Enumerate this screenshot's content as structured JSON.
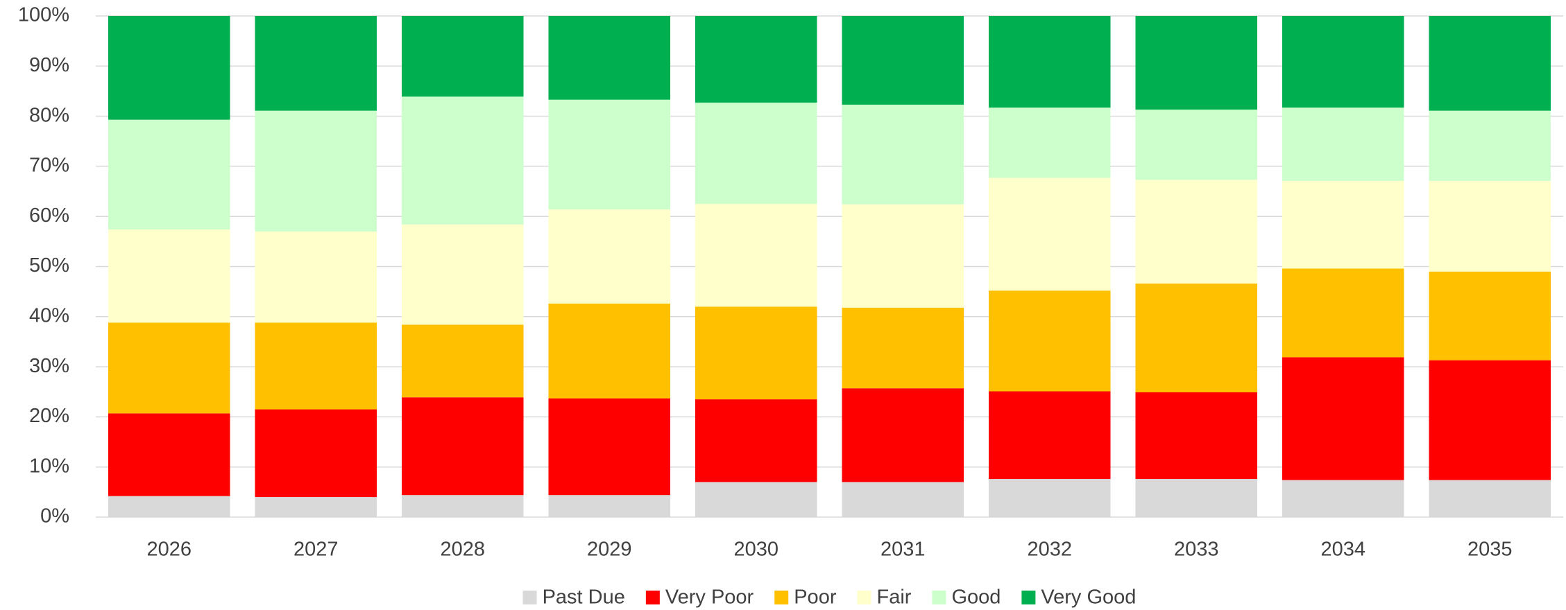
{
  "chart_data": {
    "type": "stacked_bar_100",
    "categories": [
      "2026",
      "2027",
      "2028",
      "2029",
      "2030",
      "2031",
      "2032",
      "2033",
      "2034",
      "2035"
    ],
    "series": [
      {
        "name": "Past Due",
        "color": "#d9d9d9",
        "values": [
          4.2,
          4.0,
          4.4,
          4.4,
          7.0,
          7.0,
          7.6,
          7.6,
          7.4,
          7.4
        ]
      },
      {
        "name": "Very Poor",
        "color": "#ff0000",
        "values": [
          16.5,
          17.5,
          19.5,
          19.3,
          16.5,
          18.7,
          17.5,
          17.3,
          24.5,
          23.9
        ]
      },
      {
        "name": "Poor",
        "color": "#ffc000",
        "values": [
          18.1,
          17.3,
          14.5,
          18.9,
          18.5,
          16.1,
          20.1,
          21.7,
          17.7,
          17.7
        ]
      },
      {
        "name": "Fair",
        "color": "#ffffcc",
        "values": [
          18.6,
          18.2,
          20.0,
          18.8,
          20.5,
          20.6,
          22.5,
          20.7,
          17.5,
          18.1
        ]
      },
      {
        "name": "Good",
        "color": "#ccffcc",
        "values": [
          21.9,
          24.1,
          25.5,
          21.9,
          20.2,
          19.9,
          14.0,
          14.0,
          14.6,
          14.0
        ]
      },
      {
        "name": "Very Good",
        "color": "#00b050",
        "values": [
          20.7,
          18.9,
          16.1,
          16.7,
          17.3,
          17.7,
          18.3,
          18.7,
          18.3,
          18.9
        ]
      }
    ],
    "ylim": [
      0,
      100
    ],
    "yticks": [
      {
        "value": 0,
        "label": "0%"
      },
      {
        "value": 10,
        "label": "10%"
      },
      {
        "value": 20,
        "label": "20%"
      },
      {
        "value": 30,
        "label": "30%"
      },
      {
        "value": 40,
        "label": "40%"
      },
      {
        "value": 50,
        "label": "50%"
      },
      {
        "value": 60,
        "label": "60%"
      },
      {
        "value": 70,
        "label": "70%"
      },
      {
        "value": 80,
        "label": "80%"
      },
      {
        "value": 90,
        "label": "90%"
      },
      {
        "value": 100,
        "label": "100%"
      }
    ],
    "grid": true,
    "legend": "bottom"
  }
}
